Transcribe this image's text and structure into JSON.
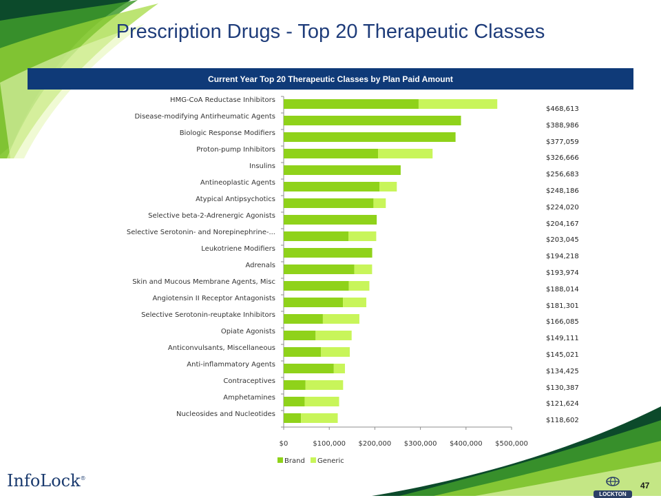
{
  "page": {
    "title": "Prescription Drugs - Top 20 Therapeutic Classes",
    "banner": "Current Year Top 20 Therapeutic Classes by Plan Paid Amount",
    "page_number": "47",
    "logo_left": "InfoLock",
    "logo_left_mark": "®",
    "logo_right": "LOCKTON"
  },
  "colors": {
    "brand": "#8fd21a",
    "generic": "#c8f55a",
    "banner": "#0f3a78",
    "title": "#1e3c7a"
  },
  "chart_data": {
    "type": "bar",
    "orientation": "horizontal",
    "stacked": true,
    "categories": [
      "HMG-CoA Reductase Inhibitors",
      "Disease-modifying Antirheumatic Agents",
      "Biologic Response Modifiers",
      "Proton-pump Inhibitors",
      "Insulins",
      "Antineoplastic Agents",
      "Atypical Antipsychotics",
      "Selective beta-2-Adrenergic Agonists",
      "Selective Serotonin- and Norepinephrine-...",
      "Leukotriene Modifiers",
      "Adrenals",
      "Skin and Mucous Membrane Agents, Misc",
      "Angiotensin II Receptor Antagonists",
      "Selective Serotonin-reuptake Inhibitors",
      "Opiate Agonists",
      "Anticonvulsants, Miscellaneous",
      "Anti-inflammatory  Agents",
      "Contraceptives",
      "Amphetamines",
      "Nucleosides and Nucleotides"
    ],
    "series": [
      {
        "name": "Brand",
        "values": [
          296000,
          388986,
          377059,
          207000,
          256683,
          210000,
          197000,
          204167,
          142000,
          194218,
          155000,
          143000,
          130000,
          86000,
          70000,
          82000,
          110000,
          48000,
          46000,
          38000
        ]
      },
      {
        "name": "Generic",
        "values": [
          172613,
          0,
          0,
          119666,
          0,
          38186,
          27020,
          0,
          61045,
          0,
          38974,
          45014,
          51301,
          80085,
          79111,
          63021,
          24425,
          82387,
          75624,
          80602
        ]
      }
    ],
    "totals": [
      "$468,613",
      "$388,986",
      "$377,059",
      "$326,666",
      "$256,683",
      "$248,186",
      "$224,020",
      "$204,167",
      "$203,045",
      "$194,218",
      "$193,974",
      "$188,014",
      "$181,301",
      "$166,085",
      "$149,111",
      "$145,021",
      "$134,425",
      "$130,387",
      "$121,624",
      "$118,602"
    ],
    "xlim": [
      0,
      500000
    ],
    "xticks": [
      0,
      100000,
      200000,
      300000,
      400000,
      500000
    ],
    "xtick_labels": [
      "$0",
      "$100,000",
      "$200,000",
      "$300,000",
      "$400,000",
      "$500,000"
    ],
    "legend": [
      "Brand",
      "Generic"
    ],
    "legend_position": "bottom",
    "grid": false
  }
}
